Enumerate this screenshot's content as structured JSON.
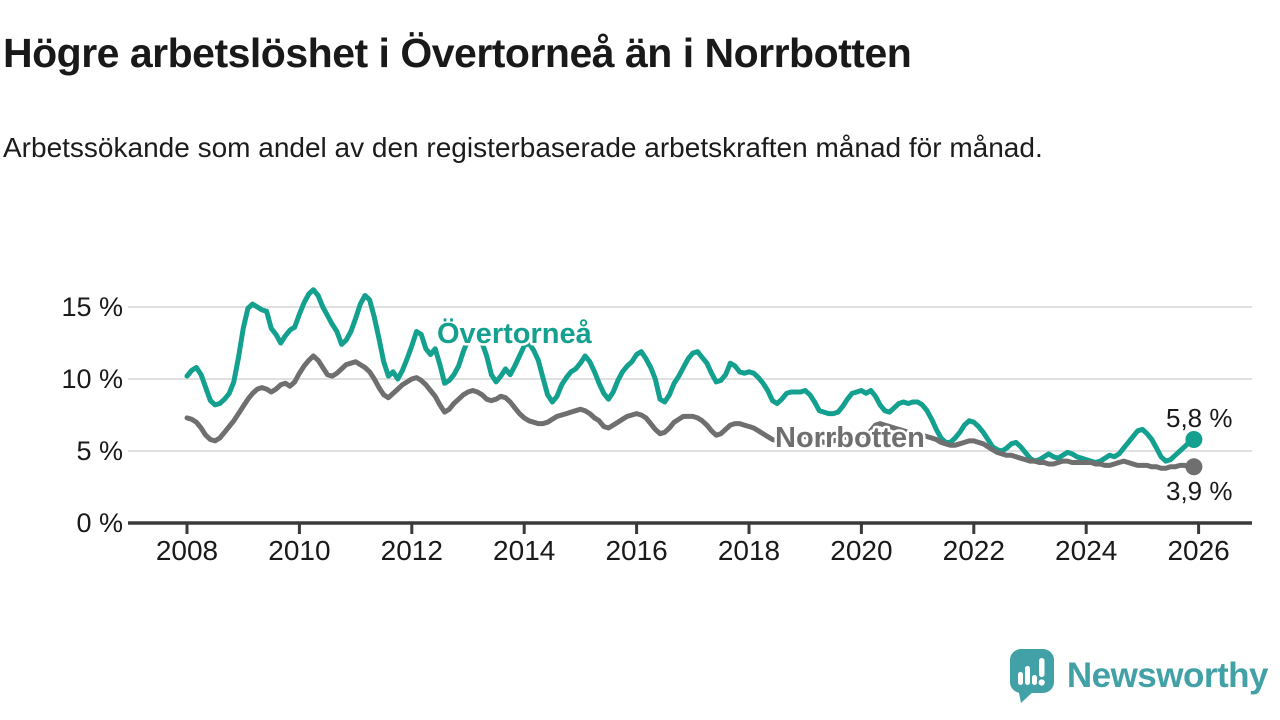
{
  "header": {
    "title": "Högre arbetslöshet i Övertorneå än i Norrbotten",
    "subtitle": "Arbetssökande som andel av den registerbaserade arbetskraften månad för månad."
  },
  "chart_data": {
    "type": "line",
    "title": "Högre arbetslöshet i Övertorneå än i Norrbotten",
    "subtitle": "Arbetssökande som andel av den registerbaserade arbetskraften månad för månad.",
    "x_unit": "month",
    "x_range": [
      "2008-01",
      "2025-12"
    ],
    "x_ticks": [
      2008,
      2010,
      2012,
      2014,
      2016,
      2018,
      2020,
      2022,
      2024,
      2026
    ],
    "y_ticks": [
      {
        "value": 0,
        "label": "0 %"
      },
      {
        "value": 5,
        "label": "5 %"
      },
      {
        "value": 10,
        "label": "10 %"
      },
      {
        "value": 15,
        "label": "15 %"
      }
    ],
    "y_gridlines": [
      5,
      10,
      15
    ],
    "ylim": [
      0,
      17
    ],
    "grid": true,
    "legend_position": "inline-labels",
    "unit": "%",
    "series": [
      {
        "id": "overtornea",
        "name": "Övertorneå",
        "color": "#13a08e",
        "end_label": "5,8 %",
        "end_value": 5.8,
        "values": [
          10.2,
          10.6,
          10.8,
          10.3,
          9.4,
          8.5,
          8.2,
          8.3,
          8.6,
          9.0,
          9.8,
          11.5,
          13.5,
          14.9,
          15.2,
          15.0,
          14.8,
          14.7,
          13.5,
          13.1,
          12.5,
          13.0,
          13.4,
          13.6,
          14.5,
          15.3,
          15.9,
          16.2,
          15.8,
          15.0,
          14.4,
          13.8,
          13.3,
          12.4,
          12.7,
          13.3,
          14.2,
          15.2,
          15.8,
          15.5,
          14.3,
          12.8,
          11.2,
          10.2,
          10.5,
          10.0,
          10.6,
          11.4,
          12.3,
          13.3,
          13.1,
          12.1,
          11.7,
          12.1,
          11.0,
          9.7,
          9.9,
          10.3,
          10.9,
          11.9,
          12.7,
          13.1,
          12.9,
          12.5,
          11.6,
          10.3,
          9.8,
          10.2,
          10.7,
          10.3,
          10.9,
          11.6,
          12.3,
          12.5,
          12.0,
          11.3,
          10.1,
          8.9,
          8.4,
          8.8,
          9.6,
          10.1,
          10.5,
          10.7,
          11.1,
          11.6,
          11.2,
          10.5,
          9.7,
          9.0,
          8.6,
          9.1,
          9.9,
          10.5,
          10.9,
          11.2,
          11.7,
          11.9,
          11.4,
          10.8,
          10.0,
          8.6,
          8.4,
          8.9,
          9.7,
          10.2,
          10.8,
          11.4,
          11.8,
          11.9,
          11.5,
          11.1,
          10.4,
          9.8,
          9.9,
          10.3,
          11.1,
          10.9,
          10.5,
          10.4,
          10.5,
          10.4,
          10.1,
          9.7,
          9.2,
          8.5,
          8.3,
          8.6,
          9.0,
          9.1,
          9.1,
          9.1,
          9.2,
          8.9,
          8.4,
          7.8,
          7.7,
          7.6,
          7.6,
          7.7,
          8.1,
          8.6,
          9.0,
          9.1,
          9.2,
          9.0,
          9.2,
          8.8,
          8.2,
          7.8,
          7.7,
          8.0,
          8.3,
          8.4,
          8.3,
          8.4,
          8.4,
          8.2,
          7.8,
          7.2,
          6.5,
          5.9,
          5.6,
          5.6,
          5.9,
          6.3,
          6.8,
          7.1,
          7.0,
          6.7,
          6.3,
          5.8,
          5.3,
          5.1,
          5.0,
          5.2,
          5.5,
          5.6,
          5.3,
          4.9,
          4.5,
          4.3,
          4.4,
          4.6,
          4.8,
          4.6,
          4.5,
          4.7,
          4.9,
          4.8,
          4.6,
          4.5,
          4.4,
          4.3,
          4.2,
          4.3,
          4.5,
          4.7,
          4.6,
          4.8,
          5.2,
          5.6,
          6.0,
          6.4,
          6.5,
          6.2,
          5.8,
          5.2,
          4.6,
          4.3,
          4.4,
          4.7,
          5.0,
          5.3,
          5.6,
          5.8
        ]
      },
      {
        "id": "norrbotten",
        "name": "Norrbotten",
        "color": "#6f6f6f",
        "end_label": "3,9 %",
        "end_value": 3.9,
        "values": [
          7.3,
          7.2,
          7.0,
          6.6,
          6.1,
          5.8,
          5.7,
          5.9,
          6.3,
          6.7,
          7.1,
          7.6,
          8.1,
          8.6,
          9.0,
          9.3,
          9.4,
          9.3,
          9.1,
          9.3,
          9.6,
          9.7,
          9.5,
          9.8,
          10.4,
          10.9,
          11.3,
          11.6,
          11.3,
          10.8,
          10.3,
          10.2,
          10.4,
          10.7,
          11.0,
          11.1,
          11.2,
          11.0,
          10.8,
          10.5,
          10.0,
          9.4,
          8.9,
          8.7,
          9.0,
          9.3,
          9.6,
          9.8,
          10.0,
          10.1,
          9.9,
          9.6,
          9.2,
          8.8,
          8.2,
          7.7,
          7.9,
          8.3,
          8.6,
          8.9,
          9.1,
          9.2,
          9.1,
          8.9,
          8.6,
          8.5,
          8.6,
          8.8,
          8.7,
          8.4,
          8.0,
          7.6,
          7.3,
          7.1,
          7.0,
          6.9,
          6.9,
          7.0,
          7.2,
          7.4,
          7.5,
          7.6,
          7.7,
          7.8,
          7.9,
          7.8,
          7.6,
          7.3,
          7.1,
          6.7,
          6.6,
          6.8,
          7.0,
          7.2,
          7.4,
          7.5,
          7.6,
          7.5,
          7.3,
          6.9,
          6.5,
          6.2,
          6.3,
          6.6,
          7.0,
          7.2,
          7.4,
          7.4,
          7.4,
          7.3,
          7.1,
          6.8,
          6.4,
          6.1,
          6.2,
          6.5,
          6.8,
          6.9,
          6.9,
          6.8,
          6.7,
          6.6,
          6.4,
          6.2,
          6.0,
          5.8,
          5.7,
          5.8,
          6.0,
          6.1,
          6.1,
          6.0,
          6.0,
          5.9,
          5.8,
          5.7,
          5.6,
          5.6,
          5.7,
          5.8,
          5.9,
          6.0,
          6.0,
          6.0,
          6.1,
          6.1,
          6.4,
          6.8,
          6.9,
          6.8,
          6.7,
          6.6,
          6.5,
          6.4,
          6.3,
          6.2,
          6.2,
          6.1,
          6.0,
          5.9,
          5.8,
          5.6,
          5.5,
          5.4,
          5.4,
          5.5,
          5.6,
          5.7,
          5.7,
          5.6,
          5.5,
          5.3,
          5.1,
          4.9,
          4.8,
          4.7,
          4.7,
          4.6,
          4.5,
          4.4,
          4.3,
          4.3,
          4.2,
          4.2,
          4.1,
          4.1,
          4.2,
          4.3,
          4.3,
          4.2,
          4.2,
          4.2,
          4.2,
          4.2,
          4.1,
          4.1,
          4.0,
          4.0,
          4.1,
          4.2,
          4.3,
          4.2,
          4.1,
          4.0,
          4.0,
          4.0,
          3.9,
          3.9,
          3.8,
          3.8,
          3.9,
          3.9,
          4.0,
          4.0,
          3.9,
          3.9
        ]
      }
    ]
  },
  "footer": {
    "brand": "Newsworthy"
  },
  "colors": {
    "accent_teal": "#13a08e",
    "series_gray": "#6f6f6f",
    "text_dark": "#1a1a1a",
    "axis": "#3a3a3a",
    "gridline": "#e0e0e0",
    "brand_teal": "#42a1a6",
    "background": "#ffffff"
  }
}
